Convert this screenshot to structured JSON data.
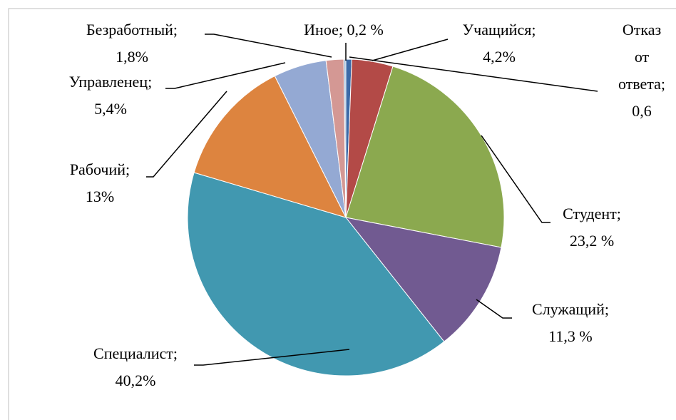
{
  "chart_data": {
    "type": "pie",
    "categories": [
      "Отказ от ответа;",
      "Учащийся;",
      "Студент;",
      "Служащий;",
      "Специалист;",
      "Рабочий;",
      "Управленец;",
      "Безработный;",
      "Иное;"
    ],
    "values": [
      0.6,
      4.2,
      23.2,
      11.3,
      40.2,
      13,
      5.4,
      1.8,
      0.2
    ],
    "value_labels": [
      "0,6",
      "4,2%",
      "23,2 %",
      "11,3 %",
      "40,2%",
      "13%",
      "5,4%",
      "1,8%",
      "0,2 %"
    ],
    "colors": [
      "#3c6aa8",
      "#b34a47",
      "#8ba94f",
      "#715a91",
      "#4198b0",
      "#dd843f",
      "#94a9d3",
      "#d49894",
      "#9bb7d6"
    ]
  }
}
